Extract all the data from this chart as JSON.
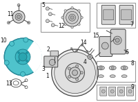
{
  "background_color": "#ffffff",
  "dust_shield_color": "#4fc3cc",
  "line_color": "#444444",
  "border_color": "#999999",
  "text_color": "#111111",
  "figsize": [
    2.0,
    1.47
  ],
  "dpi": 100
}
